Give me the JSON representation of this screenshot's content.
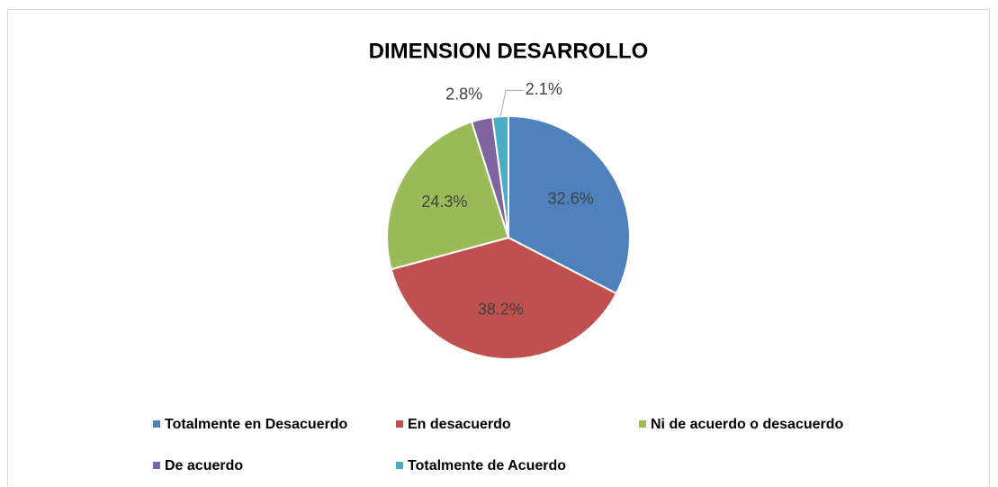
{
  "chart_data": {
    "type": "pie",
    "title": "DIMENSION DESARROLLO",
    "categories": [
      "Totalmente en Desacuerdo",
      "En desacuerdo",
      "Ni de acuerdo o desacuerdo",
      "De acuerdo",
      "Totalmente de Acuerdo"
    ],
    "values": [
      32.6,
      38.2,
      24.3,
      2.8,
      2.1
    ],
    "value_labels": [
      "32.6%",
      "38.2%",
      "24.3%",
      "2.8%",
      "2.1%"
    ],
    "colors": [
      "#4f81bd",
      "#c0504d",
      "#9bbb59",
      "#8064a2",
      "#4bacc6"
    ],
    "legend": "bottom"
  }
}
